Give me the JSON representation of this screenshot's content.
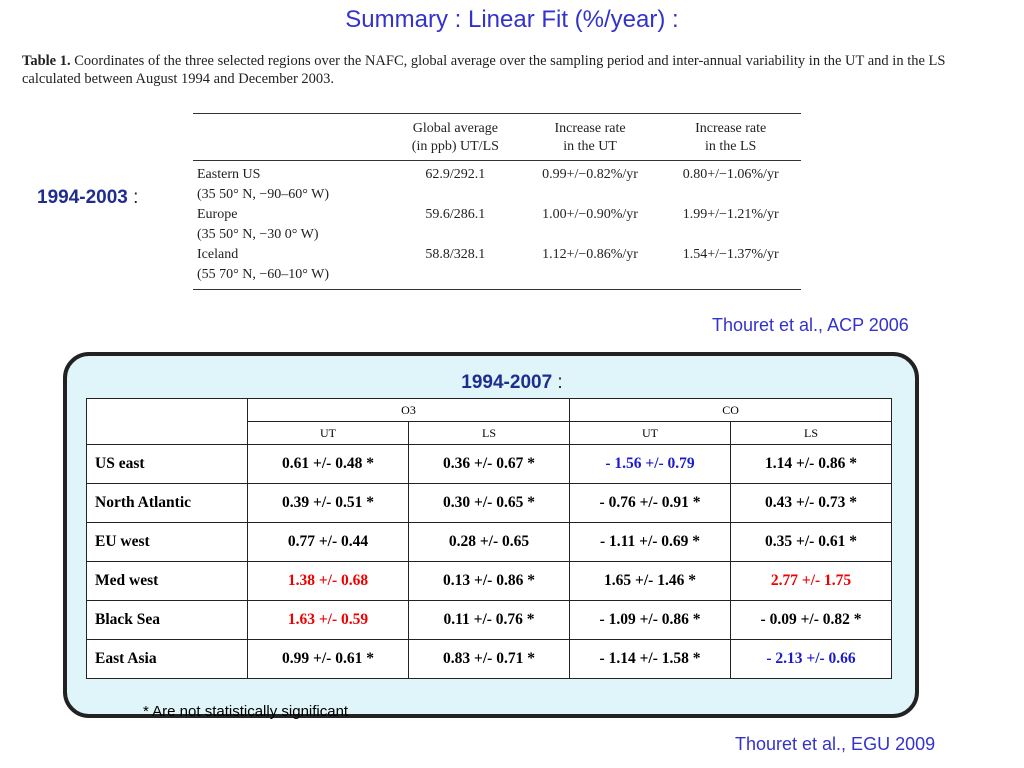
{
  "title": "Summary : Linear Fit (%/year) :",
  "caption": {
    "label": "Table 1.",
    "text": " Coordinates of the three selected regions over the NAFC, global average over the sampling period and inter-annual variability in the UT and in the LS calculated between August 1994 and December 2003."
  },
  "period1": {
    "years": "1994-2003",
    "colon": " :"
  },
  "table1": {
    "headers": [
      "",
      "Global average\n(in ppb) UT/LS",
      "Increase rate\nin the UT",
      "Increase rate\nin the LS"
    ],
    "rows": [
      {
        "region": "Eastern US",
        "coords": "(35 50° N, −90–60° W)",
        "global": "62.9/292.1",
        "ut": "0.99+/−0.82%/yr",
        "ls": "0.80+/−1.06%/yr"
      },
      {
        "region": "Europe",
        "coords": "(35 50° N, −30 0° W)",
        "global": "59.6/286.1",
        "ut": "1.00+/−0.90%/yr",
        "ls": "1.99+/−1.21%/yr"
      },
      {
        "region": "Iceland",
        "coords": "(55 70° N, −60–10° W)",
        "global": "58.8/328.1",
        "ut": "1.12+/−0.86%/yr",
        "ls": "1.54+/−1.37%/yr"
      }
    ]
  },
  "citation1": "Thouret et al., ACP 2006",
  "period2": {
    "years": "1994-2007",
    "colon": " :"
  },
  "table2": {
    "groups": [
      "O3",
      "CO"
    ],
    "subheaders": [
      "UT",
      "LS",
      "UT",
      "LS"
    ],
    "rows": [
      {
        "region": "US east",
        "cells": [
          {
            "text": "0.61 +/-  0.48 *",
            "color": "black"
          },
          {
            "text": "0.36 +/-  0.67 *",
            "color": "black"
          },
          {
            "text": "- 1.56 +/-  0.79",
            "color": "blue"
          },
          {
            "text": "1.14 +/-  0.86 *",
            "color": "black"
          }
        ]
      },
      {
        "region": "North Atlantic",
        "cells": [
          {
            "text": "0.39 +/-  0.51 *",
            "color": "black"
          },
          {
            "text": "0.30 +/-  0.65 *",
            "color": "black"
          },
          {
            "text": "- 0.76 +/-  0.91 *",
            "color": "black"
          },
          {
            "text": "0.43 +/-  0.73 *",
            "color": "black"
          }
        ]
      },
      {
        "region": "EU west",
        "cells": [
          {
            "text": "0.77 +/-  0.44",
            "color": "black"
          },
          {
            "text": "0.28 +/-  0.65",
            "color": "black"
          },
          {
            "text": "- 1.11 +/-  0.69 *",
            "color": "black"
          },
          {
            "text": "0.35 +/-  0.61 *",
            "color": "black"
          }
        ]
      },
      {
        "region": "Med west",
        "cells": [
          {
            "text": "1.38  +/- 0.68",
            "color": "red"
          },
          {
            "text": "0.13 +/-  0.86 *",
            "color": "black"
          },
          {
            "text": "1.65  +/- 1.46 *",
            "color": "black"
          },
          {
            "text": "2.77 +/-  1.75",
            "color": "red"
          }
        ]
      },
      {
        "region": "Black Sea",
        "cells": [
          {
            "text": "1.63 +/-  0.59",
            "color": "red"
          },
          {
            "text": "0.11 +/-  0.76 *",
            "color": "black"
          },
          {
            "text": "- 1.09 +/-  0.86 *",
            "color": "black"
          },
          {
            "text": "- 0.09 +/-  0.82 *",
            "color": "black"
          }
        ]
      },
      {
        "region": "East Asia",
        "cells": [
          {
            "text": "0.99 +/-  0.61 *",
            "color": "black"
          },
          {
            "text": "0.83 +/-  0.71 *",
            "color": "black"
          },
          {
            "text": "- 1.14  +/- 1.58 *",
            "color": "black"
          },
          {
            "text": "- 2.13 +/- 0.66",
            "color": "blue"
          }
        ]
      }
    ]
  },
  "footnote": "* Are not statistically significant",
  "citation2": "Thouret et al., EGU 2009",
  "colors": {
    "title": "#3333cc",
    "period": "#1f2d8f",
    "box_fill": "#dff5fa",
    "red": "#ee0000",
    "blue": "#1a1acc"
  }
}
